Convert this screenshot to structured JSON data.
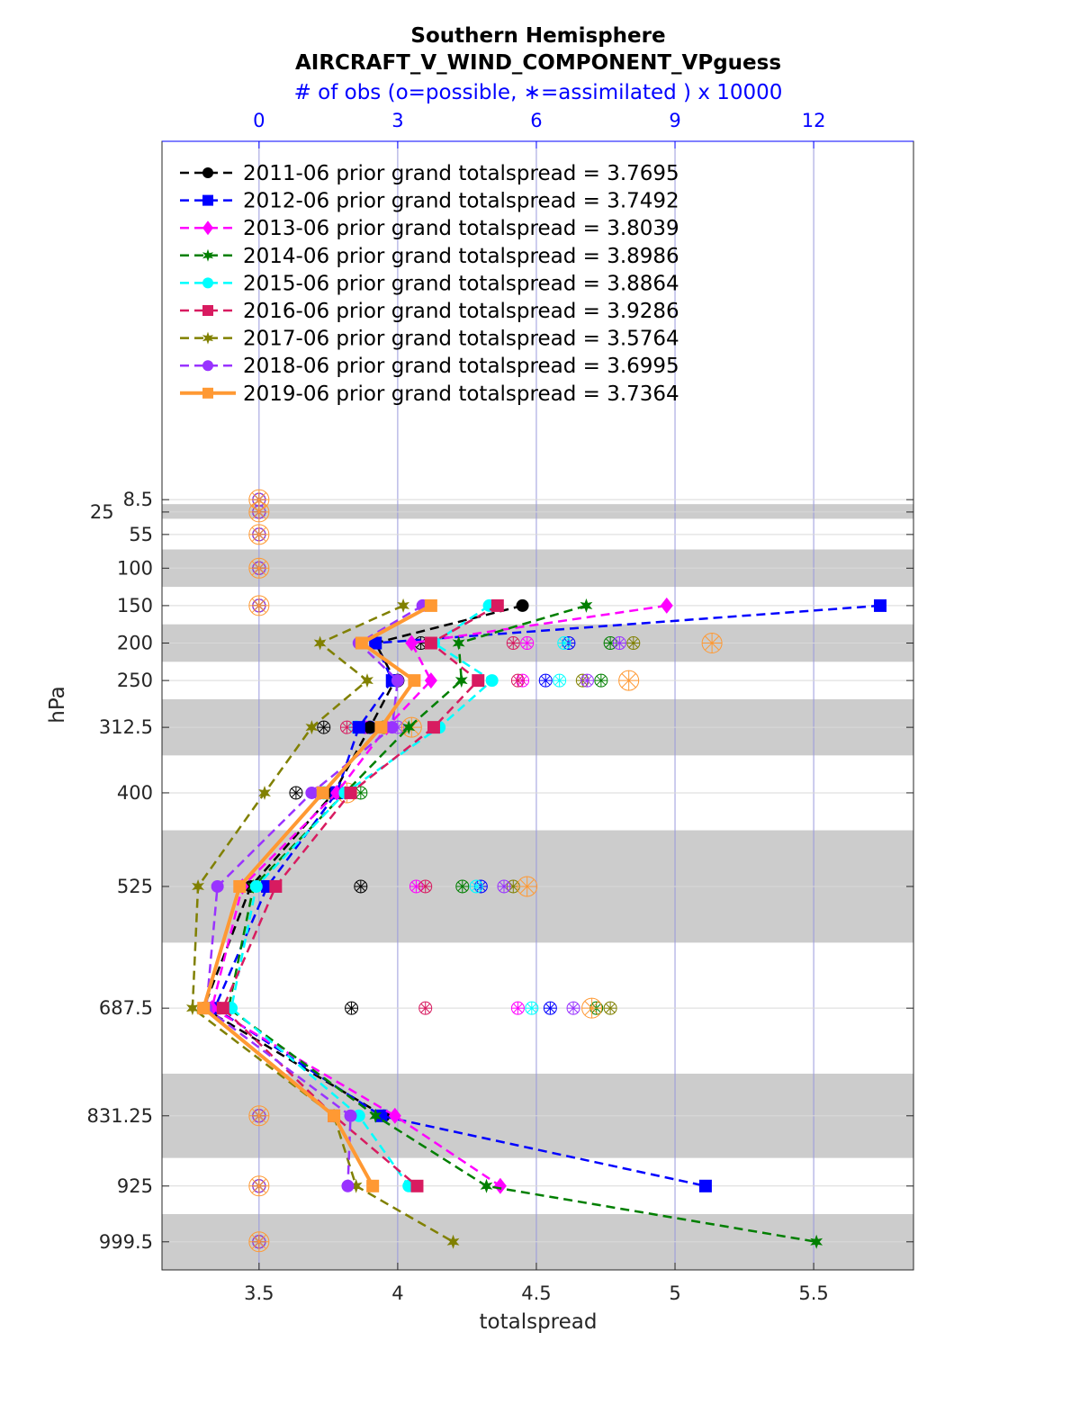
{
  "chart_data": {
    "type": "line",
    "title": "Southern Hemisphere",
    "subtitle": "AIRCRAFT_V_WIND_COMPONENT_VPguess",
    "top_axis_label": "# of obs (o=possible, ∗=assimilated ) x 10000",
    "xlabel": "totalspread",
    "ylabel": "hPa",
    "xlim": [
      3.15,
      5.86
    ],
    "x_ticks": [
      "3.5",
      "4",
      "4.5",
      "5",
      "5.5"
    ],
    "x_tick_values": [
      3.5,
      4,
      4.5,
      5,
      5.5
    ],
    "top_ticks": [
      "0",
      "3",
      "6",
      "9",
      "12"
    ],
    "top_tick_values": [
      0,
      3,
      6,
      9,
      12
    ],
    "ylim": [
      -470,
      1037
    ],
    "y_reversed": true,
    "levels": [
      8.5,
      25,
      55,
      100,
      150,
      200,
      250,
      312.5,
      400,
      525,
      687.5,
      831.25,
      925,
      999.5
    ],
    "level_labels": [
      "8.5",
      "25",
      "55",
      "100",
      "150",
      "200",
      "250",
      "312.5",
      "400",
      "525",
      "687.5",
      "831.25",
      "925",
      "999.5"
    ],
    "shaded_layers": [
      [
        14.5,
        34
      ],
      [
        75,
        125
      ],
      [
        175,
        225
      ],
      [
        275,
        350
      ],
      [
        450,
        600
      ],
      [
        775,
        887.5
      ],
      [
        962.5,
        1037
      ]
    ],
    "grid": true,
    "legend_placement": "top-left",
    "series": [
      {
        "name": "2011-06 prior grand totalspread = 3.7695",
        "color": "#000000",
        "marker": "circle",
        "style": "dashed",
        "values": [
          null,
          null,
          null,
          null,
          4.45,
          3.92,
          3.99,
          3.9,
          3.77,
          3.47,
          3.3,
          3.95,
          null,
          null
        ],
        "obs": [
          0,
          0,
          0,
          0,
          0,
          3.5,
          3.0,
          1.4,
          0.8,
          2.2,
          2.0,
          0,
          0,
          0
        ]
      },
      {
        "name": "2012-06 prior grand totalspread = 3.7492",
        "color": "#0000ff",
        "marker": "square",
        "style": "dashed",
        "values": [
          null,
          null,
          null,
          null,
          5.74,
          3.92,
          3.98,
          3.86,
          3.78,
          3.53,
          3.34,
          3.94,
          5.11,
          null
        ],
        "obs": [
          0,
          0,
          0,
          0,
          0,
          6.7,
          6.2,
          2.4,
          1.6,
          4.8,
          6.3,
          0,
          0,
          0
        ]
      },
      {
        "name": "2013-06 prior grand totalspread = 3.8039",
        "color": "#ff00ff",
        "marker": "diamond",
        "style": "dashed",
        "values": [
          null,
          null,
          null,
          null,
          4.97,
          4.05,
          4.12,
          3.96,
          3.78,
          3.44,
          3.33,
          3.99,
          4.37,
          null
        ],
        "obs": [
          0,
          0,
          0,
          0,
          0,
          5.8,
          5.7,
          2.3,
          1.7,
          3.4,
          5.6,
          0,
          0,
          0
        ]
      },
      {
        "name": "2014-06 prior grand totalspread = 3.8986",
        "color": "#007f00",
        "marker": "star",
        "style": "dashed",
        "values": [
          null,
          null,
          null,
          null,
          4.68,
          4.22,
          4.23,
          4.04,
          3.81,
          3.48,
          3.39,
          3.92,
          4.32,
          5.51
        ],
        "obs": [
          0,
          0,
          0,
          0,
          0,
          7.6,
          7.4,
          2.7,
          2.2,
          4.4,
          7.3,
          0,
          0,
          0
        ]
      },
      {
        "name": "2015-06 prior grand totalspread = 3.8864",
        "color": "#00ffff",
        "marker": "circle",
        "style": "dashed",
        "values": [
          null,
          null,
          null,
          null,
          4.33,
          4.13,
          4.34,
          4.15,
          3.81,
          3.49,
          3.4,
          3.86,
          4.04,
          null
        ],
        "obs": [
          0,
          0,
          0,
          0,
          0,
          6.6,
          6.5,
          2.1,
          1.4,
          4.7,
          5.9,
          0,
          0,
          0
        ]
      },
      {
        "name": "2016-06 prior grand totalspread = 3.9286",
        "color": "#d81b60",
        "marker": "square",
        "style": "dashed",
        "values": [
          null,
          null,
          null,
          null,
          4.36,
          4.12,
          4.29,
          4.13,
          3.83,
          3.56,
          3.37,
          3.77,
          4.07,
          null
        ],
        "obs": [
          0,
          0,
          0,
          0,
          0,
          5.5,
          5.6,
          1.9,
          1.3,
          3.6,
          3.6,
          0,
          0,
          0
        ]
      },
      {
        "name": "2017-06 prior grand totalspread = 3.5764",
        "color": "#808000",
        "marker": "asterisk",
        "style": "dashed",
        "values": [
          null,
          null,
          null,
          null,
          4.02,
          3.72,
          3.89,
          3.69,
          3.52,
          3.28,
          3.26,
          3.77,
          3.85,
          4.2
        ],
        "obs": [
          0,
          0,
          0,
          0,
          0,
          8.1,
          7.0,
          2.7,
          1.5,
          5.5,
          7.6,
          0,
          0,
          0
        ]
      },
      {
        "name": "2018-06 prior grand totalspread = 3.6995",
        "color": "#9933ff",
        "marker": "circle",
        "style": "dashed",
        "values": [
          null,
          null,
          null,
          null,
          4.09,
          3.86,
          4.0,
          3.98,
          3.69,
          3.35,
          3.31,
          3.83,
          3.82,
          null
        ],
        "obs": [
          0,
          0,
          0,
          0,
          0,
          7.8,
          7.1,
          3.0,
          1.3,
          5.3,
          6.8,
          0,
          0,
          0
        ]
      },
      {
        "name": "2019-06 prior grand totalspread = 3.7364",
        "color": "#ff9933",
        "marker": "square",
        "style": "solid",
        "values": [
          null,
          null,
          null,
          null,
          4.12,
          3.87,
          4.06,
          3.94,
          3.73,
          3.43,
          3.3,
          3.77,
          3.91,
          null
        ],
        "obs": [
          0,
          0,
          0,
          0,
          0,
          9.8,
          8.0,
          3.3,
          1.9,
          5.8,
          7.2,
          0,
          0,
          0
        ]
      }
    ]
  }
}
